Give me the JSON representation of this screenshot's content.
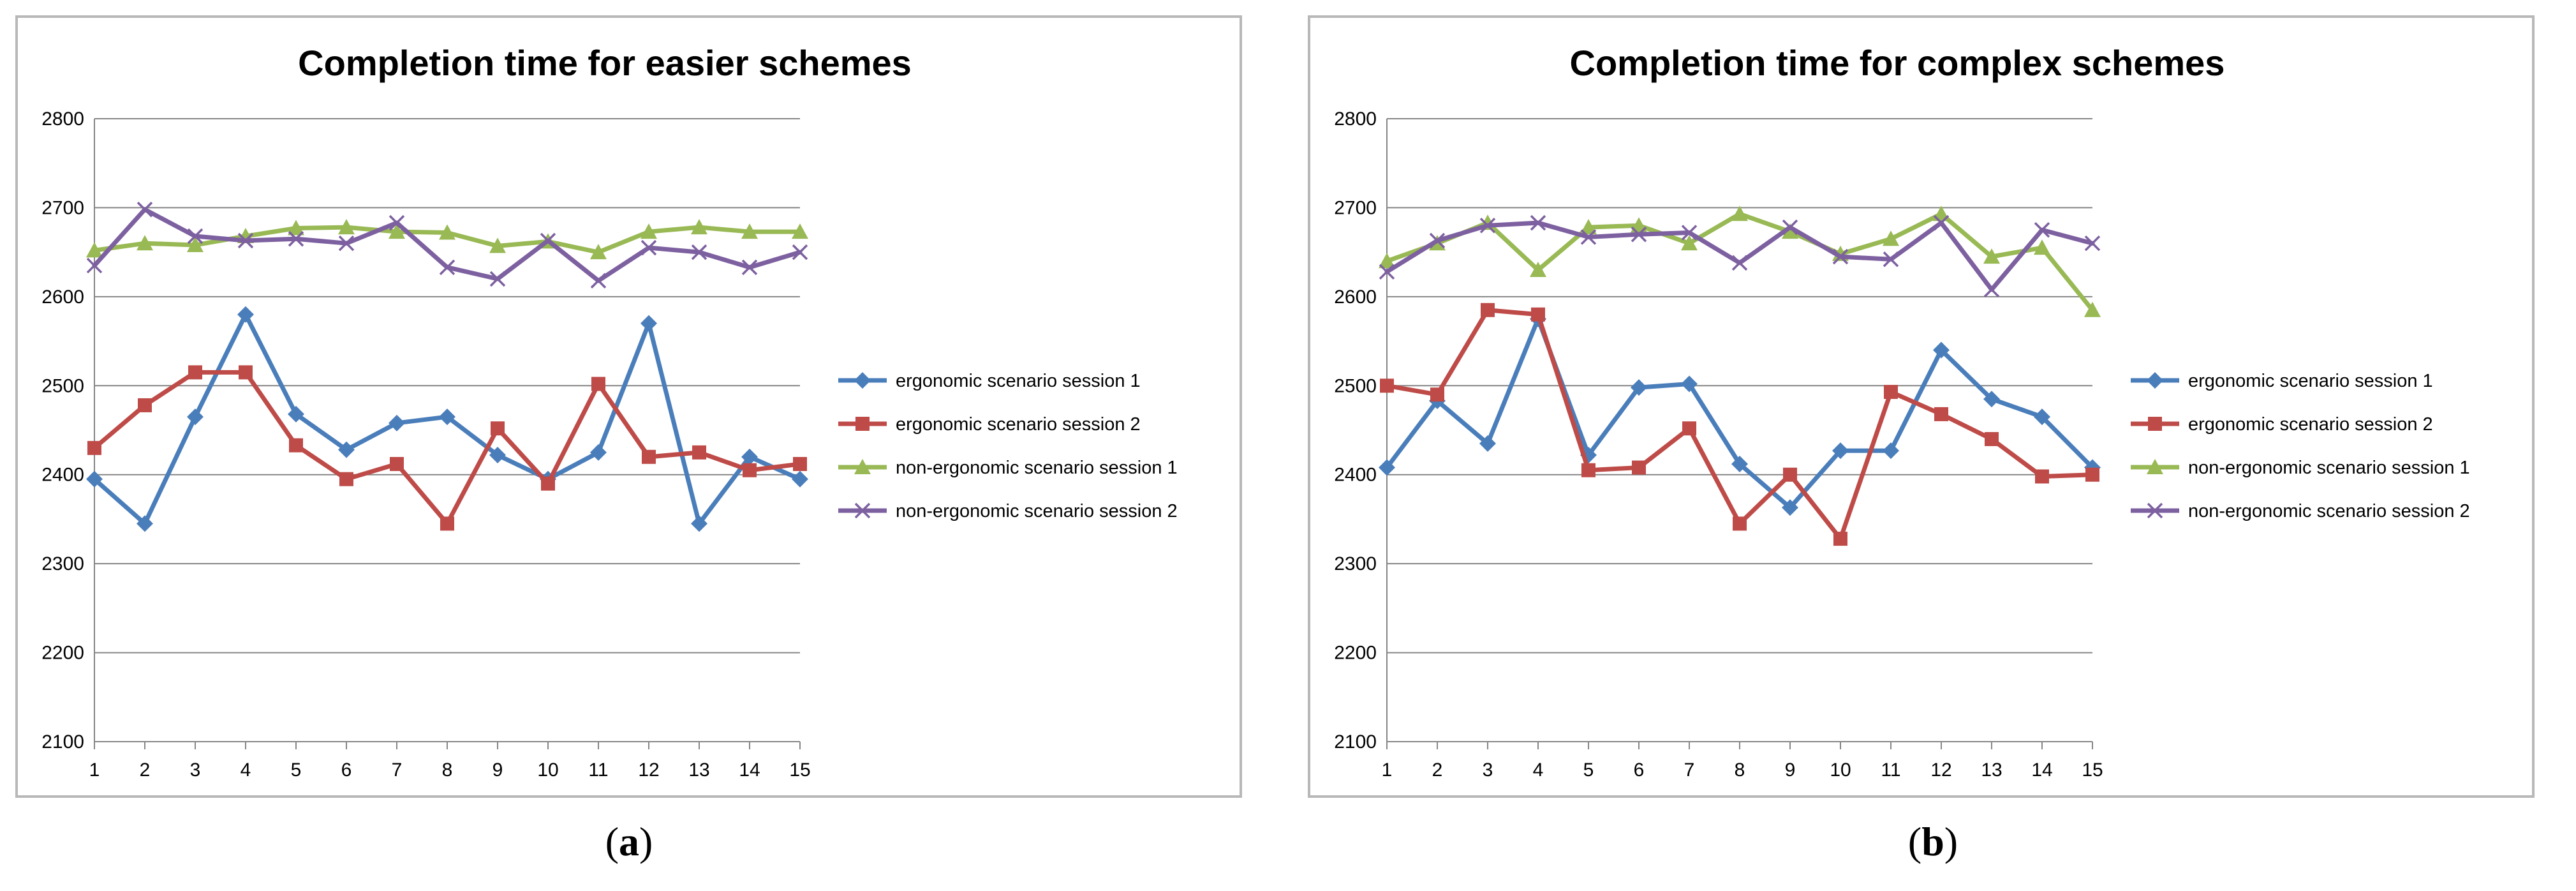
{
  "captions": {
    "a": "a",
    "b": "b"
  },
  "chart_data": [
    {
      "type": "line",
      "title": "Completion time for easier schemes",
      "xlabel": "",
      "ylabel": "",
      "ylim": [
        2100,
        2800
      ],
      "yticks": [
        2100,
        2200,
        2300,
        2400,
        2500,
        2600,
        2700,
        2800
      ],
      "x": [
        1,
        2,
        3,
        4,
        5,
        6,
        7,
        8,
        9,
        10,
        11,
        12,
        13,
        14,
        15
      ],
      "grid": "horizontal",
      "legend_position": "right",
      "series": [
        {
          "name": "ergonomic scenario session 1",
          "color": "#4a7ebb",
          "marker": "diamond",
          "values": [
            2395,
            2345,
            2465,
            2580,
            2468,
            2428,
            2458,
            2465,
            2422,
            2395,
            2425,
            2570,
            2345,
            2420,
            2395
          ]
        },
        {
          "name": "ergonomic scenario session 2",
          "color": "#be4b48",
          "marker": "square",
          "values": [
            2430,
            2478,
            2515,
            2515,
            2433,
            2395,
            2412,
            2345,
            2452,
            2390,
            2502,
            2420,
            2425,
            2405,
            2412
          ]
        },
        {
          "name": "non-ergonomic scenario session 1",
          "color": "#98b954",
          "marker": "triangle",
          "values": [
            2652,
            2660,
            2658,
            2668,
            2677,
            2678,
            2673,
            2672,
            2657,
            2662,
            2650,
            2673,
            2678,
            2673,
            2673
          ]
        },
        {
          "name": "non-ergonomic scenario session 2",
          "color": "#7d60a0",
          "marker": "x",
          "values": [
            2635,
            2698,
            2668,
            2663,
            2665,
            2660,
            2683,
            2633,
            2620,
            2663,
            2618,
            2655,
            2650,
            2633,
            2650
          ]
        }
      ]
    },
    {
      "type": "line",
      "title": "Completion time for complex schemes",
      "xlabel": "",
      "ylabel": "",
      "ylim": [
        2100,
        2800
      ],
      "yticks": [
        2100,
        2200,
        2300,
        2400,
        2500,
        2600,
        2700,
        2800
      ],
      "x": [
        1,
        2,
        3,
        4,
        5,
        6,
        7,
        8,
        9,
        10,
        11,
        12,
        13,
        14,
        15
      ],
      "grid": "horizontal",
      "legend_position": "right",
      "series": [
        {
          "name": "ergonomic scenario session 1",
          "color": "#4a7ebb",
          "marker": "diamond",
          "values": [
            2408,
            2483,
            2435,
            2575,
            2422,
            2498,
            2502,
            2412,
            2363,
            2427,
            2427,
            2540,
            2485,
            2465,
            2408
          ]
        },
        {
          "name": "ergonomic scenario session 2",
          "color": "#be4b48",
          "marker": "square",
          "values": [
            2500,
            2490,
            2585,
            2580,
            2405,
            2408,
            2452,
            2345,
            2400,
            2328,
            2493,
            2468,
            2440,
            2398,
            2400
          ]
        },
        {
          "name": "non-ergonomic scenario session 1",
          "color": "#98b954",
          "marker": "triangle",
          "values": [
            2640,
            2660,
            2683,
            2630,
            2678,
            2680,
            2660,
            2693,
            2673,
            2648,
            2665,
            2693,
            2645,
            2655,
            2585
          ]
        },
        {
          "name": "non-ergonomic scenario session 2",
          "color": "#7d60a0",
          "marker": "x",
          "values": [
            2628,
            2663,
            2680,
            2683,
            2667,
            2670,
            2672,
            2638,
            2678,
            2645,
            2642,
            2683,
            2608,
            2675,
            2660
          ]
        }
      ]
    }
  ]
}
